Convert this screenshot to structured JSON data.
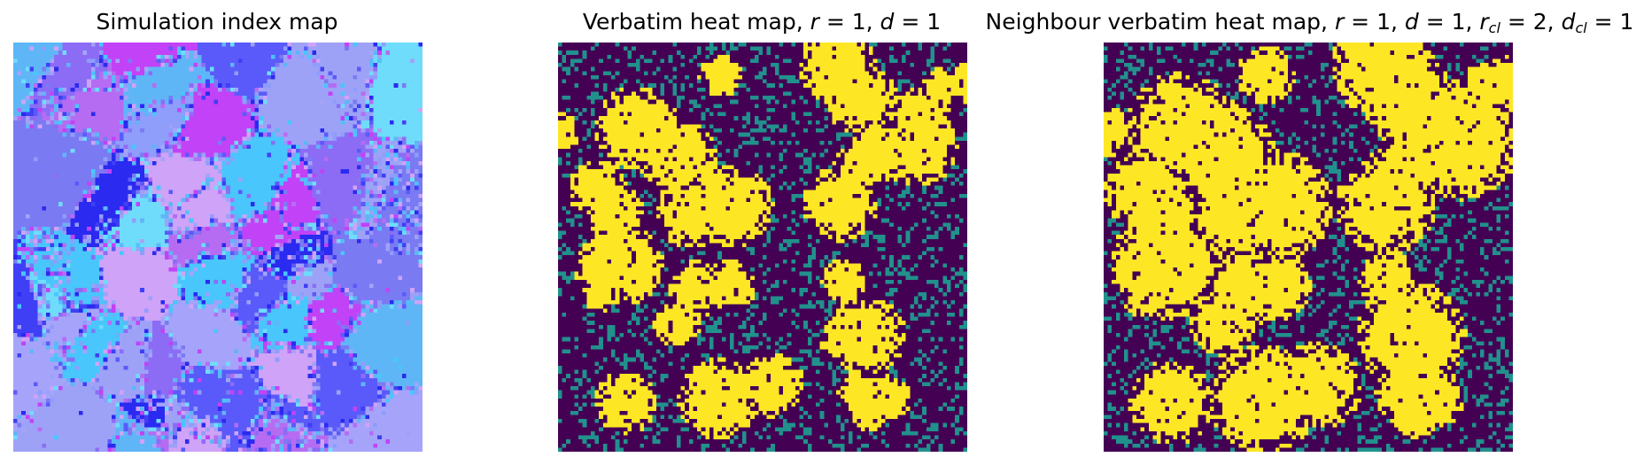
{
  "chart_data": [
    {
      "type": "heatmap",
      "title": "Simulation index map",
      "grid": false,
      "axes_visible": false,
      "grid_size": [
        100,
        100
      ],
      "colormap": "categorical",
      "palette": [
        "#3f3ff5",
        "#5a5afa",
        "#7a7af2",
        "#8f9dfb",
        "#a6a4fa",
        "#b66cf2",
        "#c242f7",
        "#5fb6f7",
        "#49c6fb",
        "#6fdcfb",
        "#9ea2f7",
        "#8c6cf5",
        "#2a2af0",
        "#cfa3f7"
      ]
    },
    {
      "type": "heatmap",
      "title_parts": [
        "Verbatim heat map, ",
        "r",
        " = 1, ",
        "d",
        " = 1"
      ],
      "grid": false,
      "axes_visible": false,
      "grid_size": [
        100,
        100
      ],
      "colormap": "viridis",
      "colors": {
        "low": "#440154",
        "mid": "#21918c",
        "high": "#fde725"
      }
    },
    {
      "type": "heatmap",
      "title_parts": [
        "Neighbour verbatim heat map, ",
        "r",
        " = 1, ",
        "d",
        " = 1, ",
        "r",
        "cl",
        " = 2, ",
        "d",
        "cl",
        " = 1"
      ],
      "grid": false,
      "axes_visible": false,
      "grid_size": [
        100,
        100
      ],
      "colormap": "viridis",
      "colors": {
        "low": "#440154",
        "mid": "#21918c",
        "high": "#fde725"
      }
    }
  ]
}
